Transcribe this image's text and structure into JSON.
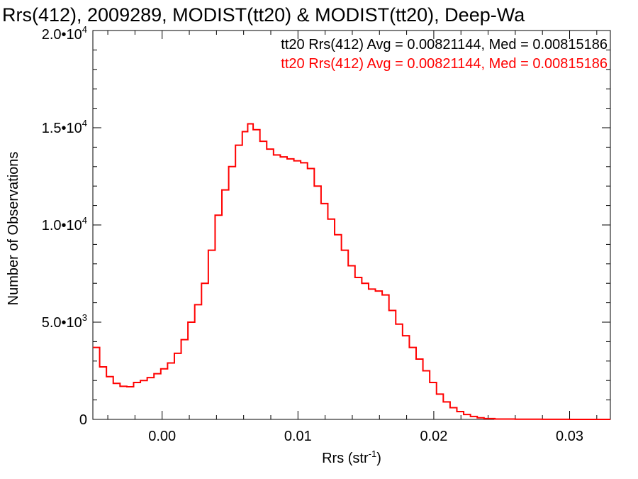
{
  "chart_data": {
    "type": "line",
    "title": "Rrs(412), 2009289, MODIST(tt20) & MODIST(tt20), Deep-Wa",
    "xlabel": "Rrs (str",
    "xlabel_sup": "-1",
    "xlabel_close": ")",
    "ylabel": "Number of Observations",
    "xlim": [
      -0.0051,
      0.033
    ],
    "ylim": [
      0,
      20000
    ],
    "x_ticks": [
      0.0,
      0.01,
      0.02,
      0.03
    ],
    "x_tick_labels": [
      "0.00",
      "0.01",
      "0.02",
      "0.03"
    ],
    "y_ticks": [
      {
        "value": 0,
        "mantissa": "0",
        "exp": ""
      },
      {
        "value": 5000,
        "mantissa": "5.0•10",
        "exp": "3"
      },
      {
        "value": 10000,
        "mantissa": "1.0•10",
        "exp": "4"
      },
      {
        "value": 15000,
        "mantissa": "1.5•10",
        "exp": "4"
      },
      {
        "value": 20000,
        "mantissa": "2.0•10",
        "exp": "4"
      }
    ],
    "grid": false,
    "legend_placement": "top-right",
    "annotations": [
      {
        "text": "tt20 Rrs(412) Avg = 0.00821144, Med = 0.00815186",
        "color": "#000000"
      },
      {
        "text": "tt20 Rrs(412) Avg = 0.00821144, Med = 0.00815186",
        "color": "#ff0000"
      }
    ],
    "series": [
      {
        "color": "#ff0000",
        "x": [
          -0.0051,
          -0.0046,
          -0.0041,
          -0.0036,
          -0.0031,
          -0.0026,
          -0.0021,
          -0.0016,
          -0.0011,
          -0.0006,
          -0.0001,
          0.0004,
          0.0009,
          0.0014,
          0.0019,
          0.0024,
          0.0029,
          0.0034,
          0.0039,
          0.0044,
          0.0049,
          0.0054,
          0.0059,
          0.0063,
          0.0067,
          0.0072,
          0.0077,
          0.0082,
          0.0087,
          0.0092,
          0.0097,
          0.0102,
          0.0107,
          0.0112,
          0.0117,
          0.0122,
          0.0127,
          0.0132,
          0.0137,
          0.0142,
          0.0147,
          0.0152,
          0.0157,
          0.0162,
          0.0167,
          0.0172,
          0.0177,
          0.0182,
          0.0187,
          0.0192,
          0.0197,
          0.0202,
          0.0207,
          0.0212,
          0.0217,
          0.0222,
          0.0227,
          0.0232,
          0.0237,
          0.0245,
          0.026,
          0.028,
          0.03,
          0.033
        ],
        "y": [
          3700,
          2700,
          2200,
          1850,
          1700,
          1680,
          1900,
          2000,
          2150,
          2350,
          2600,
          2900,
          3400,
          4100,
          5000,
          5900,
          7000,
          8700,
          10500,
          11800,
          13000,
          14100,
          14800,
          15200,
          14900,
          14300,
          13900,
          13600,
          13500,
          13400,
          13300,
          13200,
          12900,
          12000,
          11100,
          10300,
          9500,
          8700,
          7900,
          7300,
          7000,
          6700,
          6600,
          6400,
          5600,
          4900,
          4300,
          3700,
          3100,
          2500,
          1900,
          1300,
          900,
          600,
          400,
          250,
          150,
          80,
          40,
          20,
          10,
          5,
          0,
          0
        ]
      }
    ]
  }
}
